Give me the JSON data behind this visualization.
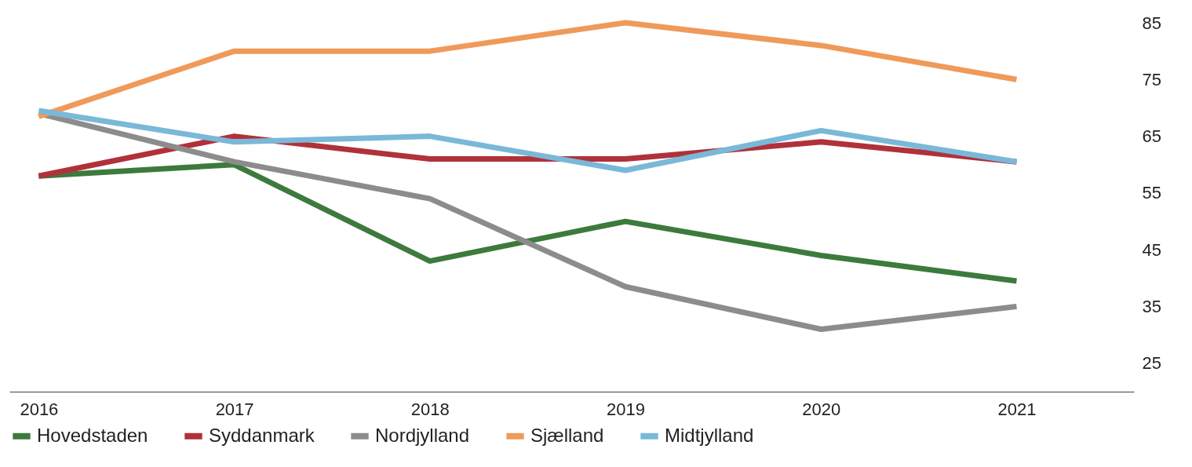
{
  "chart_data": {
    "type": "line",
    "x": [
      2016,
      2017,
      2018,
      2019,
      2020,
      2021
    ],
    "series": [
      {
        "name": "Hovedstaden",
        "color": "#3d7a3d",
        "values": [
          58,
          60,
          43,
          50,
          44,
          39.5
        ]
      },
      {
        "name": "Syddanmark",
        "color": "#b0313a",
        "values": [
          58,
          65,
          61,
          61,
          64,
          60.5
        ]
      },
      {
        "name": "Nordjylland",
        "color": "#8c8c8c",
        "values": [
          69,
          60.5,
          54,
          38.5,
          31,
          35
        ]
      },
      {
        "name": "Sjælland",
        "color": "#ef9a5a",
        "values": [
          68.5,
          80,
          80,
          85,
          81,
          75
        ]
      },
      {
        "name": "Midtjylland",
        "color": "#7ab8d8",
        "values": [
          69.5,
          64,
          65,
          59,
          66,
          60.5
        ]
      }
    ],
    "xlim": [
      2015.85,
      2021.6
    ],
    "xticks": [
      2016,
      2017,
      2018,
      2019,
      2020,
      2021
    ],
    "ylim": [
      20,
      85
    ],
    "yticks": [
      25,
      35,
      45,
      55,
      65,
      75,
      85
    ],
    "grid": false,
    "legend": "bottom",
    "marker": "none",
    "line_style": "solid"
  }
}
